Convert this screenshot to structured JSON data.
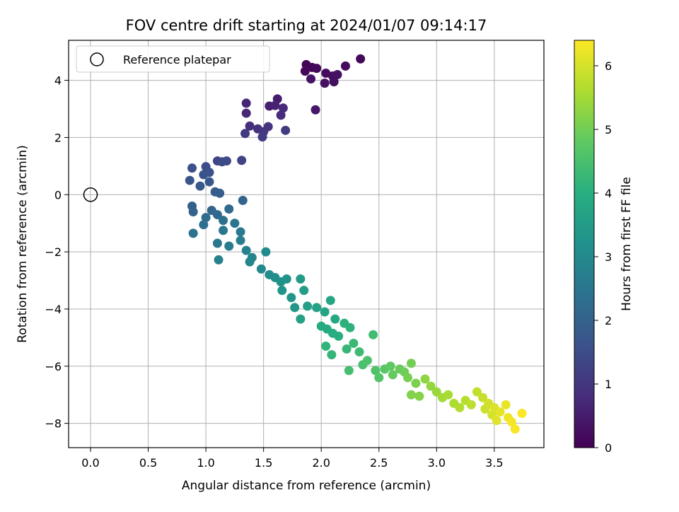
{
  "chart_data": {
    "type": "scatter",
    "title": "FOV centre drift starting at 2024/01/07 09:14:17",
    "xlabel": "Angular distance from reference (arcmin)",
    "ylabel": "Rotation from reference (arcmin)",
    "xlim": [
      -0.19,
      3.93
    ],
    "ylim": [
      -8.85,
      5.4
    ],
    "xticks": [
      "0.0",
      "0.5",
      "1.0",
      "1.5",
      "2.0",
      "2.5",
      "3.0",
      "3.5"
    ],
    "yticks": [
      "4",
      "2",
      "0",
      "−2",
      "−4",
      "−6",
      "−8"
    ],
    "grid": true,
    "legend": {
      "location": "upper left",
      "label": "Reference platepar",
      "marker": "open-circle"
    },
    "reference_point": {
      "x": 0.0,
      "y": 0.0
    },
    "colorbar": {
      "label": "Hours from first FF file",
      "colormap": "viridis",
      "range": [
        0,
        6.4
      ],
      "ticks": [
        "0",
        "1",
        "2",
        "3",
        "4",
        "5",
        "6"
      ]
    },
    "series": [
      {
        "color_by": "hours",
        "points": [
          {
            "x": 1.87,
            "y": 4.55,
            "h": 0.05
          },
          {
            "x": 1.92,
            "y": 4.45,
            "h": 0.08
          },
          {
            "x": 1.86,
            "y": 4.32,
            "h": 0.1
          },
          {
            "x": 1.96,
            "y": 4.42,
            "h": 0.12
          },
          {
            "x": 2.34,
            "y": 4.75,
            "h": 0.15
          },
          {
            "x": 2.21,
            "y": 4.5,
            "h": 0.18
          },
          {
            "x": 2.04,
            "y": 4.25,
            "h": 0.2
          },
          {
            "x": 2.1,
            "y": 4.15,
            "h": 0.22
          },
          {
            "x": 2.11,
            "y": 3.95,
            "h": 0.25
          },
          {
            "x": 2.03,
            "y": 3.9,
            "h": 0.28
          },
          {
            "x": 2.14,
            "y": 4.2,
            "h": 0.3
          },
          {
            "x": 1.91,
            "y": 4.05,
            "h": 0.32
          },
          {
            "x": 1.95,
            "y": 2.97,
            "h": 0.4
          },
          {
            "x": 1.62,
            "y": 3.35,
            "h": 0.5
          },
          {
            "x": 1.55,
            "y": 3.1,
            "h": 0.55
          },
          {
            "x": 1.6,
            "y": 3.12,
            "h": 0.6
          },
          {
            "x": 1.35,
            "y": 3.2,
            "h": 0.65
          },
          {
            "x": 1.35,
            "y": 2.85,
            "h": 0.7
          },
          {
            "x": 1.67,
            "y": 3.03,
            "h": 0.75
          },
          {
            "x": 1.65,
            "y": 2.78,
            "h": 0.8
          },
          {
            "x": 1.38,
            "y": 2.4,
            "h": 0.85
          },
          {
            "x": 1.45,
            "y": 2.3,
            "h": 0.9
          },
          {
            "x": 1.54,
            "y": 2.38,
            "h": 0.95
          },
          {
            "x": 1.5,
            "y": 2.2,
            "h": 1.0
          },
          {
            "x": 1.34,
            "y": 2.14,
            "h": 1.05
          },
          {
            "x": 1.69,
            "y": 2.25,
            "h": 1.1
          },
          {
            "x": 1.49,
            "y": 2.02,
            "h": 1.15
          },
          {
            "x": 1.31,
            "y": 1.2,
            "h": 1.3
          },
          {
            "x": 1.1,
            "y": 1.18,
            "h": 1.35
          },
          {
            "x": 1.14,
            "y": 1.15,
            "h": 1.4
          },
          {
            "x": 1.18,
            "y": 1.18,
            "h": 1.45
          },
          {
            "x": 1.0,
            "y": 0.98,
            "h": 1.5
          },
          {
            "x": 0.88,
            "y": 0.93,
            "h": 1.55
          },
          {
            "x": 1.03,
            "y": 0.78,
            "h": 1.6
          },
          {
            "x": 0.98,
            "y": 0.7,
            "h": 1.65
          },
          {
            "x": 0.86,
            "y": 0.5,
            "h": 1.7
          },
          {
            "x": 1.03,
            "y": 0.45,
            "h": 1.75
          },
          {
            "x": 0.95,
            "y": 0.3,
            "h": 1.8
          },
          {
            "x": 1.08,
            "y": 0.1,
            "h": 1.85
          },
          {
            "x": 1.12,
            "y": 0.05,
            "h": 1.9
          },
          {
            "x": 0.88,
            "y": -0.4,
            "h": 1.95
          },
          {
            "x": 0.89,
            "y": -0.6,
            "h": 2.0
          },
          {
            "x": 1.32,
            "y": -0.2,
            "h": 2.05
          },
          {
            "x": 1.05,
            "y": -0.55,
            "h": 2.1
          },
          {
            "x": 1.1,
            "y": -0.7,
            "h": 2.15
          },
          {
            "x": 1.2,
            "y": -0.5,
            "h": 2.2
          },
          {
            "x": 1.0,
            "y": -0.8,
            "h": 2.25
          },
          {
            "x": 0.98,
            "y": -1.05,
            "h": 2.3
          },
          {
            "x": 1.15,
            "y": -0.9,
            "h": 2.35
          },
          {
            "x": 0.89,
            "y": -1.35,
            "h": 2.4
          },
          {
            "x": 1.25,
            "y": -1.0,
            "h": 2.45
          },
          {
            "x": 1.15,
            "y": -1.25,
            "h": 2.5
          },
          {
            "x": 1.1,
            "y": -1.7,
            "h": 2.55
          },
          {
            "x": 1.3,
            "y": -1.3,
            "h": 2.6
          },
          {
            "x": 1.2,
            "y": -1.8,
            "h": 2.65
          },
          {
            "x": 1.3,
            "y": -1.6,
            "h": 2.7
          },
          {
            "x": 1.11,
            "y": -2.28,
            "h": 2.75
          },
          {
            "x": 1.35,
            "y": -1.95,
            "h": 2.8
          },
          {
            "x": 1.4,
            "y": -2.2,
            "h": 2.85
          },
          {
            "x": 1.38,
            "y": -2.35,
            "h": 2.9
          },
          {
            "x": 1.48,
            "y": -2.6,
            "h": 3.0
          },
          {
            "x": 1.52,
            "y": -2.0,
            "h": 3.05
          },
          {
            "x": 1.55,
            "y": -2.8,
            "h": 3.1
          },
          {
            "x": 1.6,
            "y": -2.9,
            "h": 3.15
          },
          {
            "x": 1.65,
            "y": -3.05,
            "h": 3.2
          },
          {
            "x": 1.7,
            "y": -2.95,
            "h": 3.25
          },
          {
            "x": 1.66,
            "y": -3.35,
            "h": 3.3
          },
          {
            "x": 1.74,
            "y": -3.6,
            "h": 3.35
          },
          {
            "x": 1.77,
            "y": -3.95,
            "h": 3.4
          },
          {
            "x": 1.82,
            "y": -2.95,
            "h": 3.45
          },
          {
            "x": 1.85,
            "y": -3.35,
            "h": 3.5
          },
          {
            "x": 1.88,
            "y": -3.9,
            "h": 3.55
          },
          {
            "x": 1.82,
            "y": -4.35,
            "h": 3.6
          },
          {
            "x": 1.96,
            "y": -3.95,
            "h": 3.65
          },
          {
            "x": 2.03,
            "y": -4.1,
            "h": 3.7
          },
          {
            "x": 2.08,
            "y": -3.7,
            "h": 3.75
          },
          {
            "x": 2.12,
            "y": -4.35,
            "h": 3.8
          },
          {
            "x": 2.0,
            "y": -4.6,
            "h": 3.85
          },
          {
            "x": 2.05,
            "y": -4.7,
            "h": 3.9
          },
          {
            "x": 2.1,
            "y": -4.85,
            "h": 3.95
          },
          {
            "x": 2.15,
            "y": -4.95,
            "h": 4.0
          },
          {
            "x": 2.2,
            "y": -4.5,
            "h": 4.05
          },
          {
            "x": 2.25,
            "y": -4.65,
            "h": 4.1
          },
          {
            "x": 2.04,
            "y": -5.3,
            "h": 4.15
          },
          {
            "x": 2.09,
            "y": -5.6,
            "h": 4.2
          },
          {
            "x": 2.22,
            "y": -5.4,
            "h": 4.25
          },
          {
            "x": 2.28,
            "y": -5.2,
            "h": 4.3
          },
          {
            "x": 2.33,
            "y": -5.5,
            "h": 4.35
          },
          {
            "x": 2.45,
            "y": -4.9,
            "h": 4.4
          },
          {
            "x": 2.24,
            "y": -6.15,
            "h": 4.45
          },
          {
            "x": 2.36,
            "y": -5.95,
            "h": 4.5
          },
          {
            "x": 2.4,
            "y": -5.8,
            "h": 4.55
          },
          {
            "x": 2.47,
            "y": -6.15,
            "h": 4.6
          },
          {
            "x": 2.5,
            "y": -6.4,
            "h": 4.65
          },
          {
            "x": 2.55,
            "y": -6.1,
            "h": 4.7
          },
          {
            "x": 2.6,
            "y": -6.0,
            "h": 4.8
          },
          {
            "x": 2.62,
            "y": -6.3,
            "h": 4.85
          },
          {
            "x": 2.68,
            "y": -6.1,
            "h": 4.9
          },
          {
            "x": 2.72,
            "y": -6.2,
            "h": 4.95
          },
          {
            "x": 2.78,
            "y": -5.9,
            "h": 5.0
          },
          {
            "x": 2.75,
            "y": -6.4,
            "h": 5.05
          },
          {
            "x": 2.82,
            "y": -6.6,
            "h": 5.1
          },
          {
            "x": 2.78,
            "y": -7.0,
            "h": 5.15
          },
          {
            "x": 2.85,
            "y": -7.05,
            "h": 5.2
          },
          {
            "x": 2.9,
            "y": -6.45,
            "h": 5.3
          },
          {
            "x": 2.95,
            "y": -6.7,
            "h": 5.35
          },
          {
            "x": 3.0,
            "y": -6.9,
            "h": 5.4
          },
          {
            "x": 3.05,
            "y": -7.1,
            "h": 5.5
          },
          {
            "x": 3.1,
            "y": -7.0,
            "h": 5.55
          },
          {
            "x": 3.15,
            "y": -7.3,
            "h": 5.6
          },
          {
            "x": 3.2,
            "y": -7.45,
            "h": 5.65
          },
          {
            "x": 3.25,
            "y": -7.2,
            "h": 5.7
          },
          {
            "x": 3.3,
            "y": -7.35,
            "h": 5.75
          },
          {
            "x": 3.35,
            "y": -6.9,
            "h": 5.8
          },
          {
            "x": 3.4,
            "y": -7.1,
            "h": 5.85
          },
          {
            "x": 3.42,
            "y": -7.5,
            "h": 5.9
          },
          {
            "x": 3.45,
            "y": -7.3,
            "h": 5.95
          },
          {
            "x": 3.48,
            "y": -7.7,
            "h": 6.0
          },
          {
            "x": 3.5,
            "y": -7.45,
            "h": 6.05
          },
          {
            "x": 3.52,
            "y": -7.9,
            "h": 6.1
          },
          {
            "x": 3.55,
            "y": -7.6,
            "h": 6.15
          },
          {
            "x": 3.6,
            "y": -7.35,
            "h": 6.2
          },
          {
            "x": 3.62,
            "y": -7.8,
            "h": 6.25
          },
          {
            "x": 3.65,
            "y": -7.95,
            "h": 6.3
          },
          {
            "x": 3.68,
            "y": -8.2,
            "h": 6.35
          },
          {
            "x": 3.74,
            "y": -7.65,
            "h": 6.38
          }
        ]
      }
    ]
  }
}
